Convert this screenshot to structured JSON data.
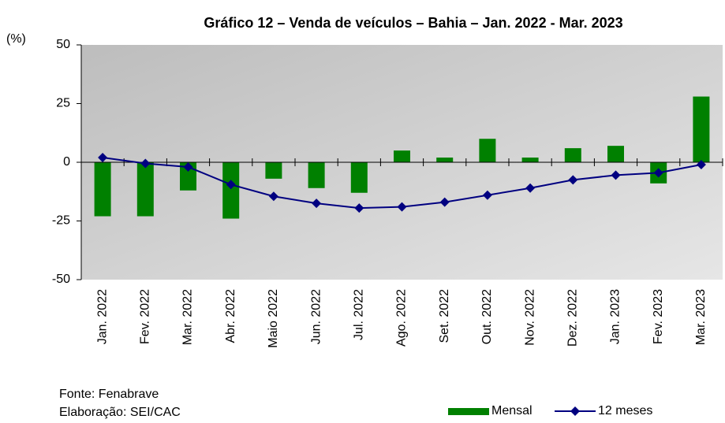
{
  "chart_data": {
    "type": "bar_line",
    "title": "Gráfico 12 – Venda de veículos – Bahia – Jan. 2022 - Mar. 2023",
    "y_label": "(%)",
    "categories": [
      "Jan. 2022",
      "Fev. 2022",
      "Mar. 2022",
      "Abr. 2022",
      "Maio 2022",
      "Jun. 2022",
      "Jul. 2022",
      "Ago. 2022",
      "Set. 2022",
      "Out. 2022",
      "Nov. 2022",
      "Dez. 2022",
      "Jan. 2023",
      "Fev. 2023",
      "Mar. 2023"
    ],
    "series": [
      {
        "name": "Mensal",
        "type": "bar",
        "color": "#008000",
        "values": [
          -23,
          -23,
          -12,
          -24,
          -7,
          -11,
          -13,
          5,
          2,
          10,
          2,
          6,
          7,
          -9,
          28
        ]
      },
      {
        "name": "12 meses",
        "type": "line",
        "color": "#000080",
        "values": [
          2,
          -0.5,
          -2,
          -9.5,
          -14.5,
          -17.5,
          -19.5,
          -19,
          -17,
          -14,
          -11,
          -7.5,
          -5.5,
          -4.5,
          -1
        ]
      }
    ],
    "ylim": [
      -50,
      50
    ],
    "yticks": [
      -50,
      -25,
      0,
      25,
      50
    ],
    "source": "Fonte: Fenabrave",
    "credit": "Elaboração: SEI/CAC"
  }
}
